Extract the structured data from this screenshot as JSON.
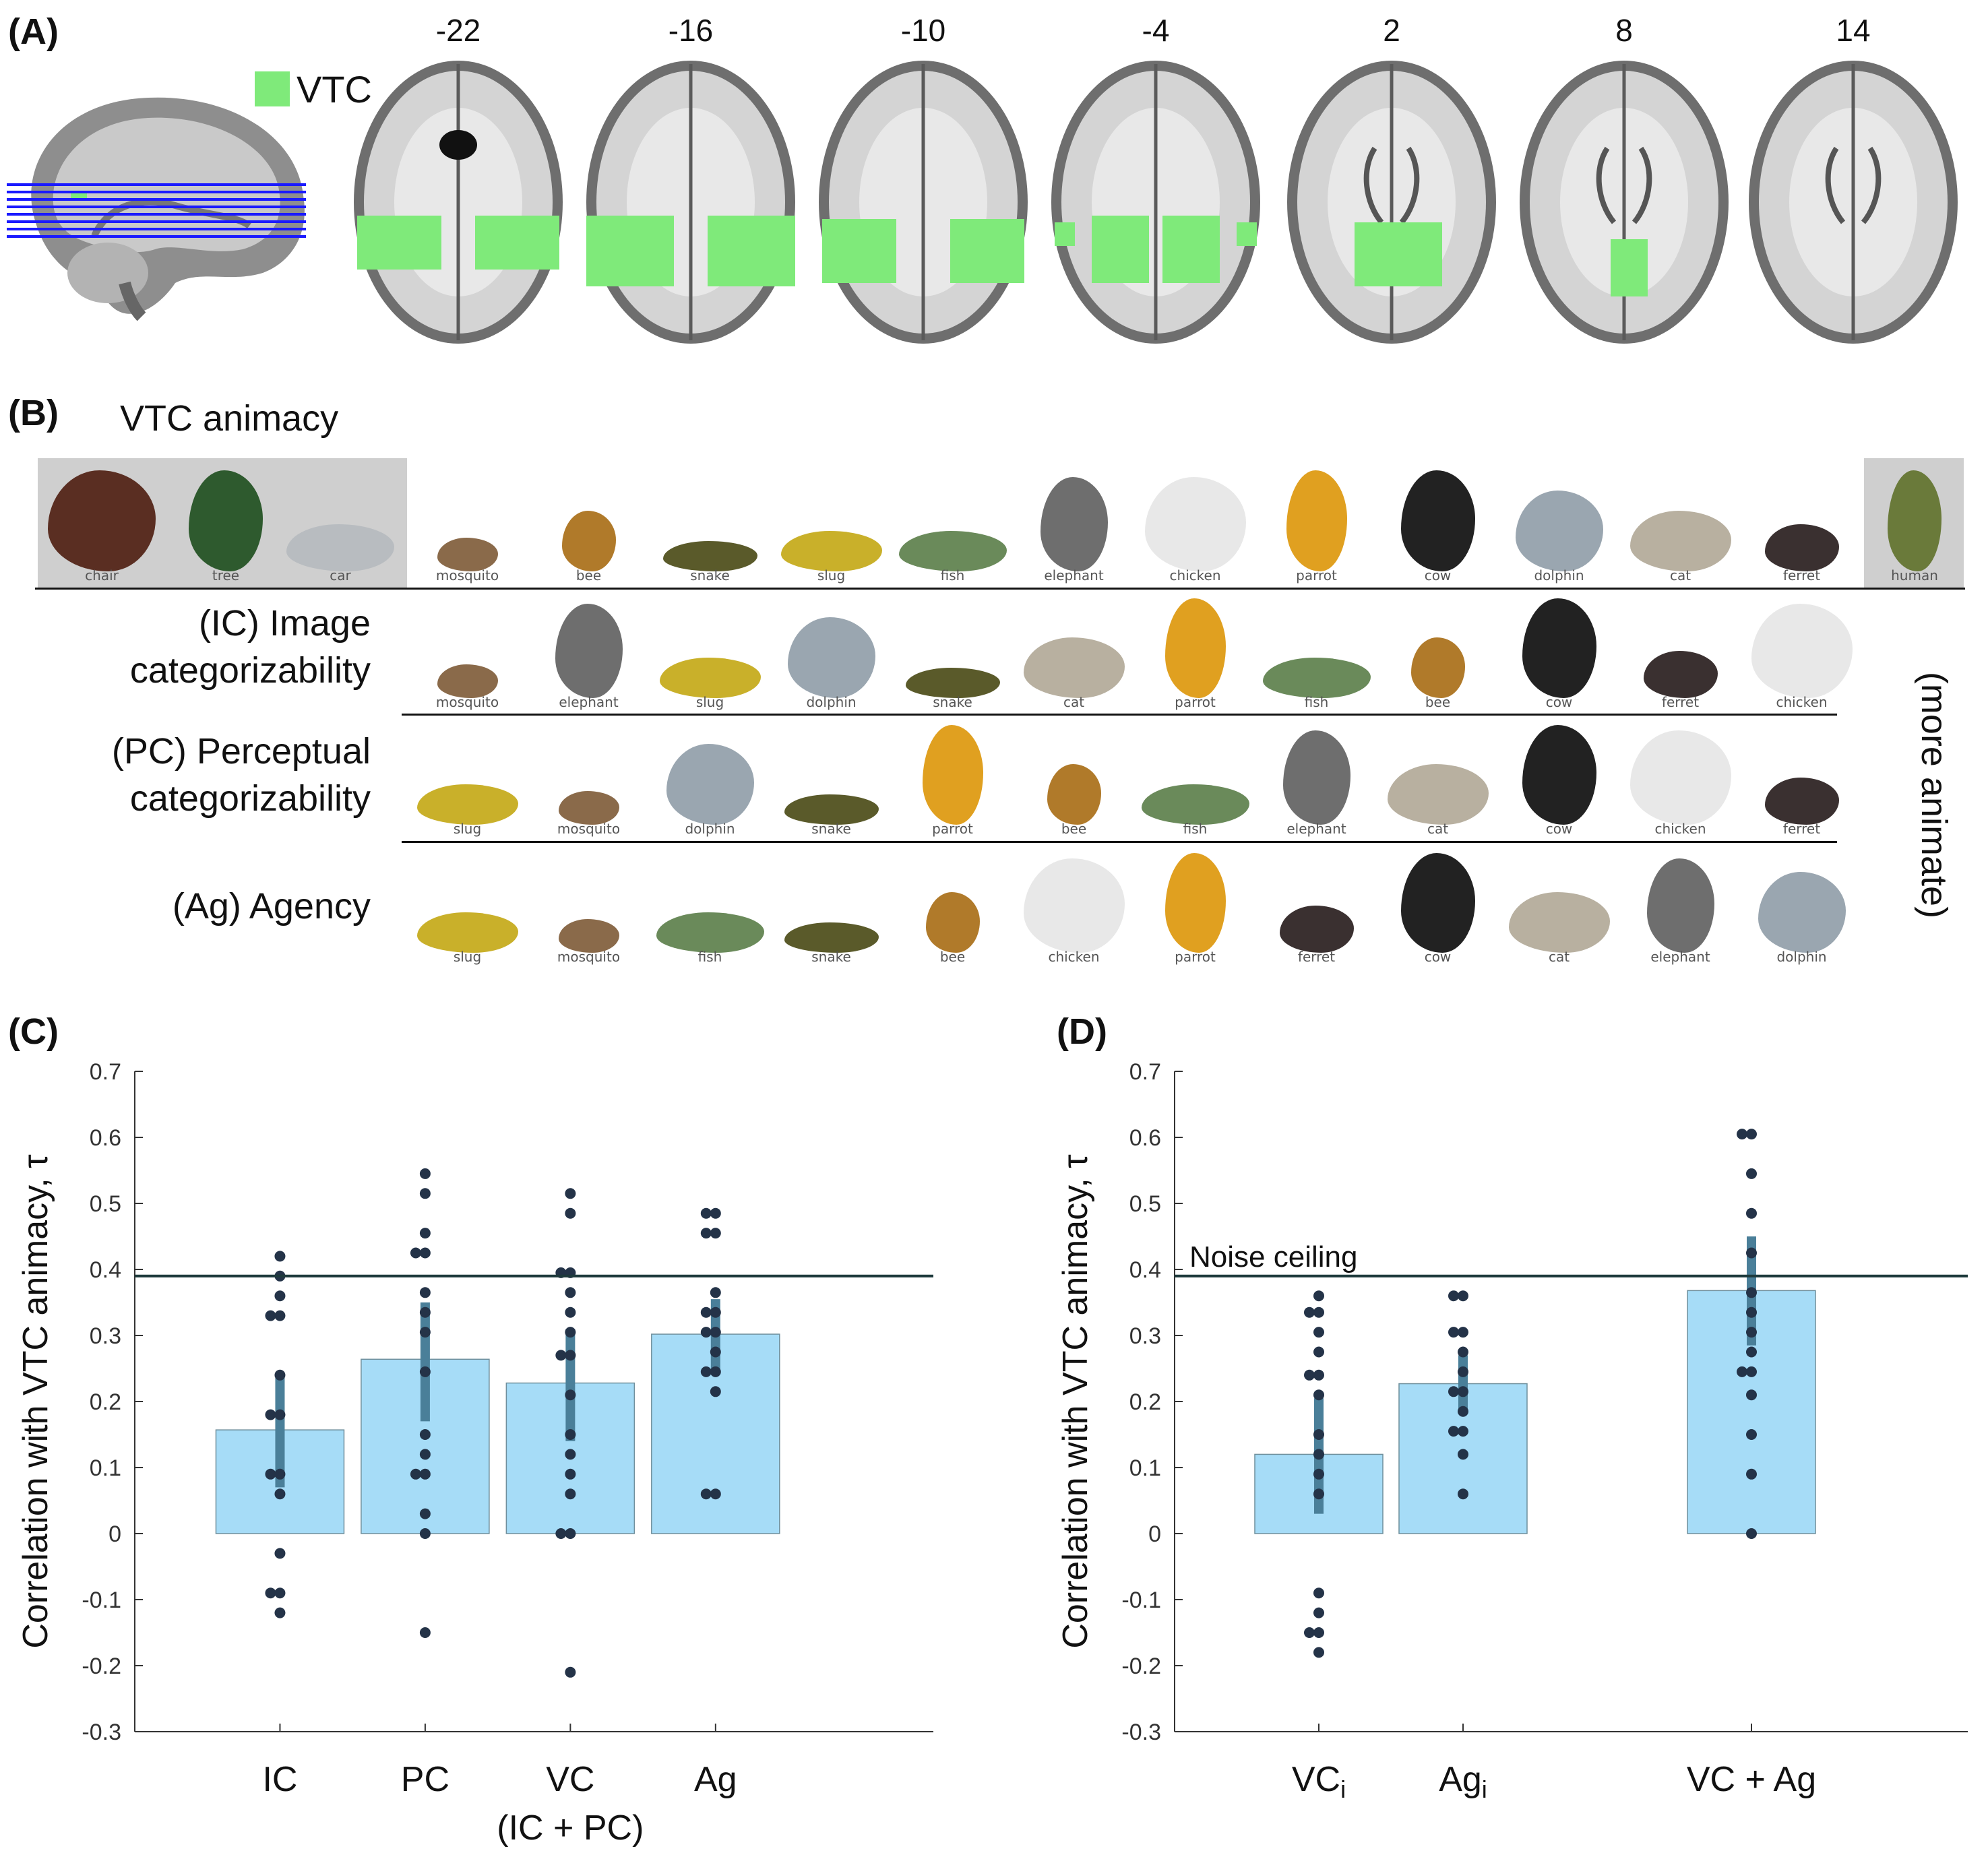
{
  "panel_a": {
    "label": "(A)",
    "legend": "VTC",
    "slices": [
      "-22",
      "-16",
      "-10",
      "-4",
      "2",
      "8",
      "14"
    ]
  },
  "panel_b": {
    "label": "(B)",
    "header": "VTC animacy",
    "inanimate": [
      "chair",
      "tree",
      "car"
    ],
    "human": "human",
    "animacy_order": [
      "mosquito",
      "bee",
      "snake",
      "slug",
      "fish",
      "elephant",
      "chicken",
      "parrot",
      "cow",
      "dolphin",
      "cat",
      "ferret"
    ],
    "rows": [
      {
        "label_line1": "(IC) Image",
        "label_line2": "categorizability",
        "order": [
          "mosquito",
          "elephant",
          "slug",
          "dolphin",
          "snake",
          "cat",
          "parrot",
          "fish",
          "bee",
          "cow",
          "ferret",
          "chicken"
        ]
      },
      {
        "label_line1": "(PC) Perceptual",
        "label_line2": "categorizability",
        "order": [
          "slug",
          "mosquito",
          "dolphin",
          "snake",
          "parrot",
          "bee",
          "fish",
          "elephant",
          "cat",
          "cow",
          "chicken",
          "ferret"
        ]
      },
      {
        "label_line1": "(Ag) Agency",
        "label_line2": "",
        "order": [
          "slug",
          "mosquito",
          "fish",
          "snake",
          "bee",
          "chicken",
          "parrot",
          "ferret",
          "cow",
          "cat",
          "elephant",
          "dolphin"
        ]
      }
    ],
    "side_label": "(more animate)"
  },
  "colors": {
    "vtc_green": "#7fea7a",
    "bar": "#a6dcf7",
    "bar_edge": "#6f8f9c",
    "errorbar": "#4a7f99",
    "dot": "#243348",
    "ceiling": "#1e3a3c",
    "slice_line": "#1a1aff"
  },
  "chart_data": [
    {
      "panel": "(C)",
      "type": "bar",
      "ylabel": "Correlation with VTC animacy, τ",
      "ylim": [
        -0.3,
        0.7
      ],
      "yticks": [
        "-0.3",
        "-0.2",
        "-0.1",
        "0",
        "0.1",
        "0.2",
        "0.3",
        "0.4",
        "0.5",
        "0.6",
        "0.7"
      ],
      "noise_ceiling": 0.39,
      "noise_ceiling_label": "",
      "bars": [
        {
          "label": "IC",
          "sublabel": "",
          "x": 1,
          "value": 0.157,
          "err": [
            0.07,
            0.24
          ],
          "points": [
            0.42,
            0.39,
            0.36,
            0.33,
            0.33,
            0.24,
            0.18,
            0.18,
            0.09,
            0.09,
            0.06,
            -0.03,
            -0.09,
            -0.09,
            -0.12
          ]
        },
        {
          "label": "PC",
          "sublabel": "",
          "x": 2,
          "value": 0.264,
          "err": [
            0.17,
            0.35
          ],
          "points": [
            0.545,
            0.515,
            0.455,
            0.425,
            0.425,
            0.365,
            0.335,
            0.305,
            0.245,
            0.15,
            0.12,
            0.09,
            0.09,
            0.03,
            0.0,
            -0.15
          ]
        },
        {
          "label": "VC",
          "sublabel": "(IC + PC)",
          "x": 3,
          "value": 0.228,
          "err": [
            0.14,
            0.31
          ],
          "points": [
            0.515,
            0.485,
            0.395,
            0.395,
            0.365,
            0.335,
            0.305,
            0.27,
            0.27,
            0.21,
            0.15,
            0.12,
            0.09,
            0.06,
            0.0,
            0.0,
            -0.21
          ]
        },
        {
          "label": "Ag",
          "sublabel": "",
          "x": 4,
          "value": 0.302,
          "err": [
            0.245,
            0.355
          ],
          "points": [
            0.485,
            0.485,
            0.455,
            0.455,
            0.365,
            0.335,
            0.335,
            0.305,
            0.305,
            0.275,
            0.245,
            0.245,
            0.215,
            0.06,
            0.06
          ]
        }
      ]
    },
    {
      "panel": "(D)",
      "type": "bar",
      "ylabel": "Correlation with VTC animacy, τ",
      "ylim": [
        -0.3,
        0.7
      ],
      "yticks": [
        "-0.3",
        "-0.2",
        "-0.1",
        "0",
        "0.1",
        "0.2",
        "0.3",
        "0.4",
        "0.5",
        "0.6",
        "0.7"
      ],
      "noise_ceiling": 0.39,
      "noise_ceiling_label": "Noise ceiling",
      "bars": [
        {
          "label": "VC",
          "subscript": "i",
          "x": 1,
          "value": 0.12,
          "err": [
            0.03,
            0.205
          ],
          "points": [
            0.36,
            0.335,
            0.335,
            0.305,
            0.275,
            0.24,
            0.24,
            0.21,
            0.15,
            0.12,
            0.09,
            0.06,
            -0.09,
            -0.12,
            -0.15,
            -0.15,
            -0.18
          ]
        },
        {
          "label": "Ag",
          "subscript": "i",
          "x": 2,
          "value": 0.227,
          "err": [
            0.185,
            0.27
          ],
          "points": [
            0.36,
            0.36,
            0.305,
            0.305,
            0.275,
            0.245,
            0.215,
            0.215,
            0.185,
            0.155,
            0.155,
            0.12,
            0.06
          ]
        },
        {
          "label": "VC + Ag",
          "subscript": "",
          "x": 4,
          "value": 0.368,
          "err": [
            0.285,
            0.45
          ],
          "points": [
            0.605,
            0.605,
            0.545,
            0.485,
            0.425,
            0.365,
            0.335,
            0.305,
            0.275,
            0.245,
            0.245,
            0.21,
            0.15,
            0.09,
            0.0
          ]
        }
      ]
    }
  ]
}
